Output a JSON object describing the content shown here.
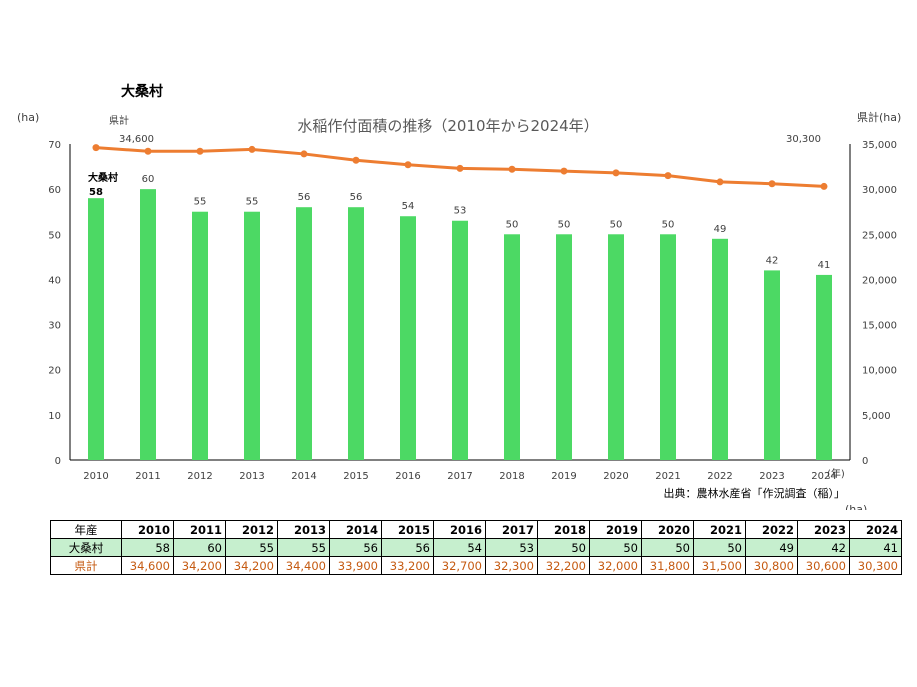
{
  "village_title": "大桑村",
  "chart_data": {
    "type": "bar+line",
    "title": "水稲作付面積の推移（2010年から2024年）",
    "categories": [
      "2010",
      "2011",
      "2012",
      "2013",
      "2014",
      "2015",
      "2016",
      "2017",
      "2018",
      "2019",
      "2020",
      "2021",
      "2022",
      "2023",
      "2024"
    ],
    "series": [
      {
        "name": "大桑村",
        "type": "bar",
        "axis": "left",
        "color": "#4cd964",
        "values": [
          58,
          60,
          55,
          55,
          56,
          56,
          54,
          53,
          50,
          50,
          50,
          50,
          49,
          42,
          41
        ]
      },
      {
        "name": "県計",
        "type": "line",
        "axis": "right",
        "color": "#ed7d31",
        "values": [
          34600,
          34200,
          34200,
          34400,
          33900,
          33200,
          32700,
          32300,
          32200,
          32000,
          31800,
          31500,
          30800,
          30600,
          30300
        ]
      }
    ],
    "y_left": {
      "unit": "(ha)",
      "min": 0,
      "max": 70,
      "step": 10,
      "ticks": [
        "0",
        "10",
        "20",
        "30",
        "40",
        "50",
        "60",
        "70"
      ]
    },
    "y_right": {
      "unit": "県計(ha)",
      "min": 0,
      "max": 35000,
      "step": 5000,
      "ticks": [
        "0",
        "5,000",
        "10,000",
        "15,000",
        "20,000",
        "25,000",
        "30,000",
        "35,000"
      ]
    },
    "x_unit": "(年)",
    "labels": {
      "first_line_label": "34,600",
      "last_line_label": "30,300",
      "line_series_label": "県計",
      "bar_series_label": "大桑村"
    },
    "source": "出典：農林水産省「作況調査（稲）」"
  },
  "table": {
    "unit": "(ha)",
    "header_label": "年産",
    "years": [
      "2010",
      "2011",
      "2012",
      "2013",
      "2014",
      "2015",
      "2016",
      "2017",
      "2018",
      "2019",
      "2020",
      "2021",
      "2022",
      "2023",
      "2024"
    ],
    "rows": [
      {
        "label": "大桑村",
        "values": [
          "58",
          "60",
          "55",
          "55",
          "56",
          "56",
          "54",
          "53",
          "50",
          "50",
          "50",
          "50",
          "49",
          "42",
          "41"
        ]
      },
      {
        "label": "県計",
        "values": [
          "34,600",
          "34,200",
          "34,200",
          "34,400",
          "33,900",
          "33,200",
          "32,700",
          "32,300",
          "32,200",
          "32,000",
          "31,800",
          "31,500",
          "30,800",
          "30,600",
          "30,300"
        ]
      }
    ]
  }
}
